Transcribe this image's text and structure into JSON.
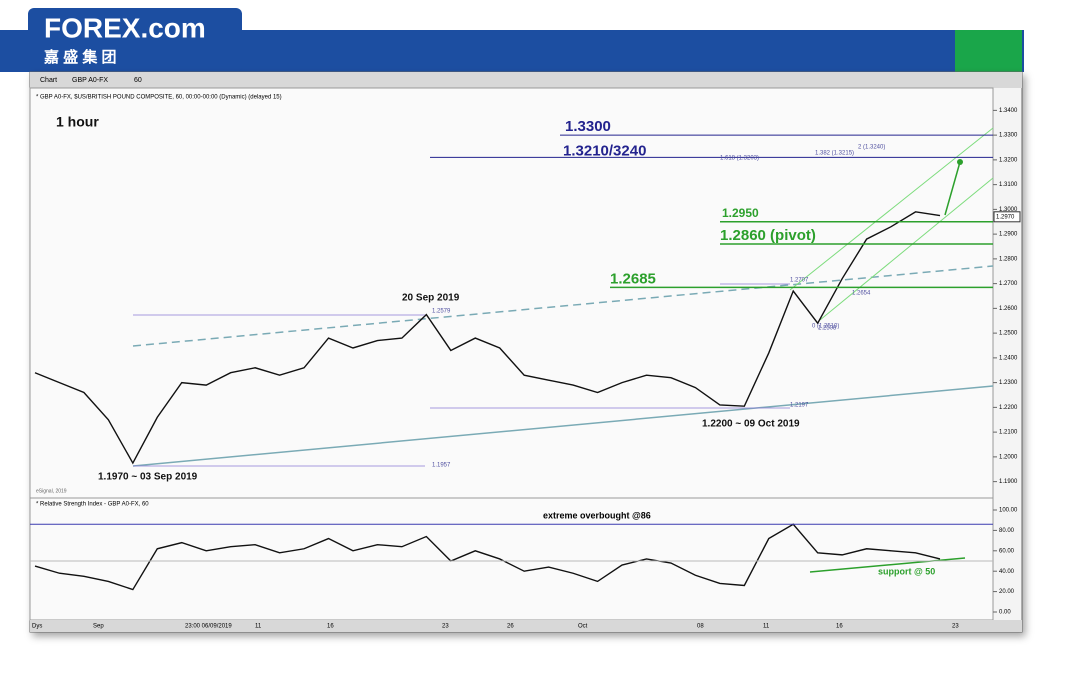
{
  "header": {
    "logo": "FOREX.com",
    "subtitle": "嘉 盛 集 团"
  },
  "toolbar": {
    "tab": "Chart",
    "symbol": "GBP A0-FX",
    "interval": "60"
  },
  "chart_data": [
    {
      "type": "line",
      "title": "* GBP A0-FX, $US/BRITISH POUND COMPOSITE, 60, 00:00-00:00 (Dynamic) (delayed 15)",
      "source": "eSignal, 2019",
      "color": "#111111",
      "values": [
        1.234,
        1.23,
        1.226,
        1.215,
        1.1975,
        1.216,
        1.23,
        1.229,
        1.234,
        1.236,
        1.233,
        1.236,
        1.248,
        1.244,
        1.247,
        1.248,
        1.2575,
        1.243,
        1.248,
        1.244,
        1.233,
        1.231,
        1.229,
        1.226,
        1.23,
        1.233,
        1.232,
        1.228,
        1.221,
        1.2205,
        1.242,
        1.267,
        1.254,
        1.272,
        1.288,
        1.293,
        1.299,
        1.2975
      ],
      "ylim": [
        1.185,
        1.345
      ],
      "yticks": [
        {
          "value": 1.19,
          "label": "1.1900"
        },
        {
          "value": 1.2,
          "label": "1.2000"
        },
        {
          "value": 1.21,
          "label": "1.2100"
        },
        {
          "value": 1.22,
          "label": "1.2200"
        },
        {
          "value": 1.23,
          "label": "1.2300"
        },
        {
          "value": 1.24,
          "label": "1.2400"
        },
        {
          "value": 1.25,
          "label": "1.2500"
        },
        {
          "value": 1.26,
          "label": "1.2600"
        },
        {
          "value": 1.27,
          "label": "1.2700"
        },
        {
          "value": 1.28,
          "label": "1.2800"
        },
        {
          "value": 1.29,
          "label": "1.2900"
        },
        {
          "value": 1.3,
          "label": "1.3000"
        },
        {
          "value": 1.31,
          "label": "1.3100"
        },
        {
          "value": 1.32,
          "label": "1.3200"
        },
        {
          "value": 1.33,
          "label": "1.3300"
        },
        {
          "value": 1.34,
          "label": "1.3400"
        }
      ],
      "last_price": {
        "value": 1.297,
        "label": "1.2970"
      },
      "levels": [
        {
          "value": 1.33,
          "label": "1.3300",
          "color": "#23238e"
        },
        {
          "value": 1.321,
          "label": "1.3210/3240",
          "color": "#23238e"
        },
        {
          "value": 1.295,
          "label": "1.2950",
          "color": "#2ca02c"
        },
        {
          "value": 1.286,
          "label": "1.2860 (pivot)",
          "color": "#2ca02c"
        },
        {
          "value": 1.2685,
          "label": "1.2685",
          "color": "#2ca02c"
        }
      ],
      "annotations": [
        "1 hour",
        "20 Sep 2019",
        "1.1970 ~ 03 Sep 2019",
        "1.2200 ~ 09 Oct 2019",
        "1.2579",
        "1.1957",
        "1.2197",
        "1.2707",
        "1.2654",
        "1.2508",
        "0 (1.2510)",
        "1.618 (1.3203)",
        "1.382 (1.3215)",
        "2 (1.3240)"
      ]
    },
    {
      "type": "line",
      "title": "* Relative Strength Index - GBP A0-FX, 60",
      "color": "#111111",
      "values": [
        45,
        38,
        35,
        30,
        22,
        62,
        68,
        60,
        64,
        66,
        58,
        62,
        72,
        60,
        66,
        64,
        74,
        50,
        60,
        52,
        40,
        44,
        38,
        30,
        46,
        52,
        48,
        36,
        28,
        26,
        72,
        86,
        58,
        56,
        62,
        60,
        58,
        52
      ],
      "ylim": [
        0,
        100
      ],
      "yticks": [
        {
          "value": 0,
          "label": "0.00"
        },
        {
          "value": 20,
          "label": "20.00"
        },
        {
          "value": 40,
          "label": "40.00"
        },
        {
          "value": 60,
          "label": "60.00"
        },
        {
          "value": 80,
          "label": "80.00"
        },
        {
          "value": 100,
          "label": "100.00"
        }
      ],
      "overbought": 86,
      "overbought_label": "extreme overbought @86",
      "support": 50,
      "support_label": "support @ 50"
    }
  ],
  "x_labels": [
    "Dys",
    "Sep",
    "23:00 06/09/2019",
    "11",
    "16",
    "23",
    "26",
    "Oct",
    "08",
    "11",
    "16",
    "23"
  ]
}
